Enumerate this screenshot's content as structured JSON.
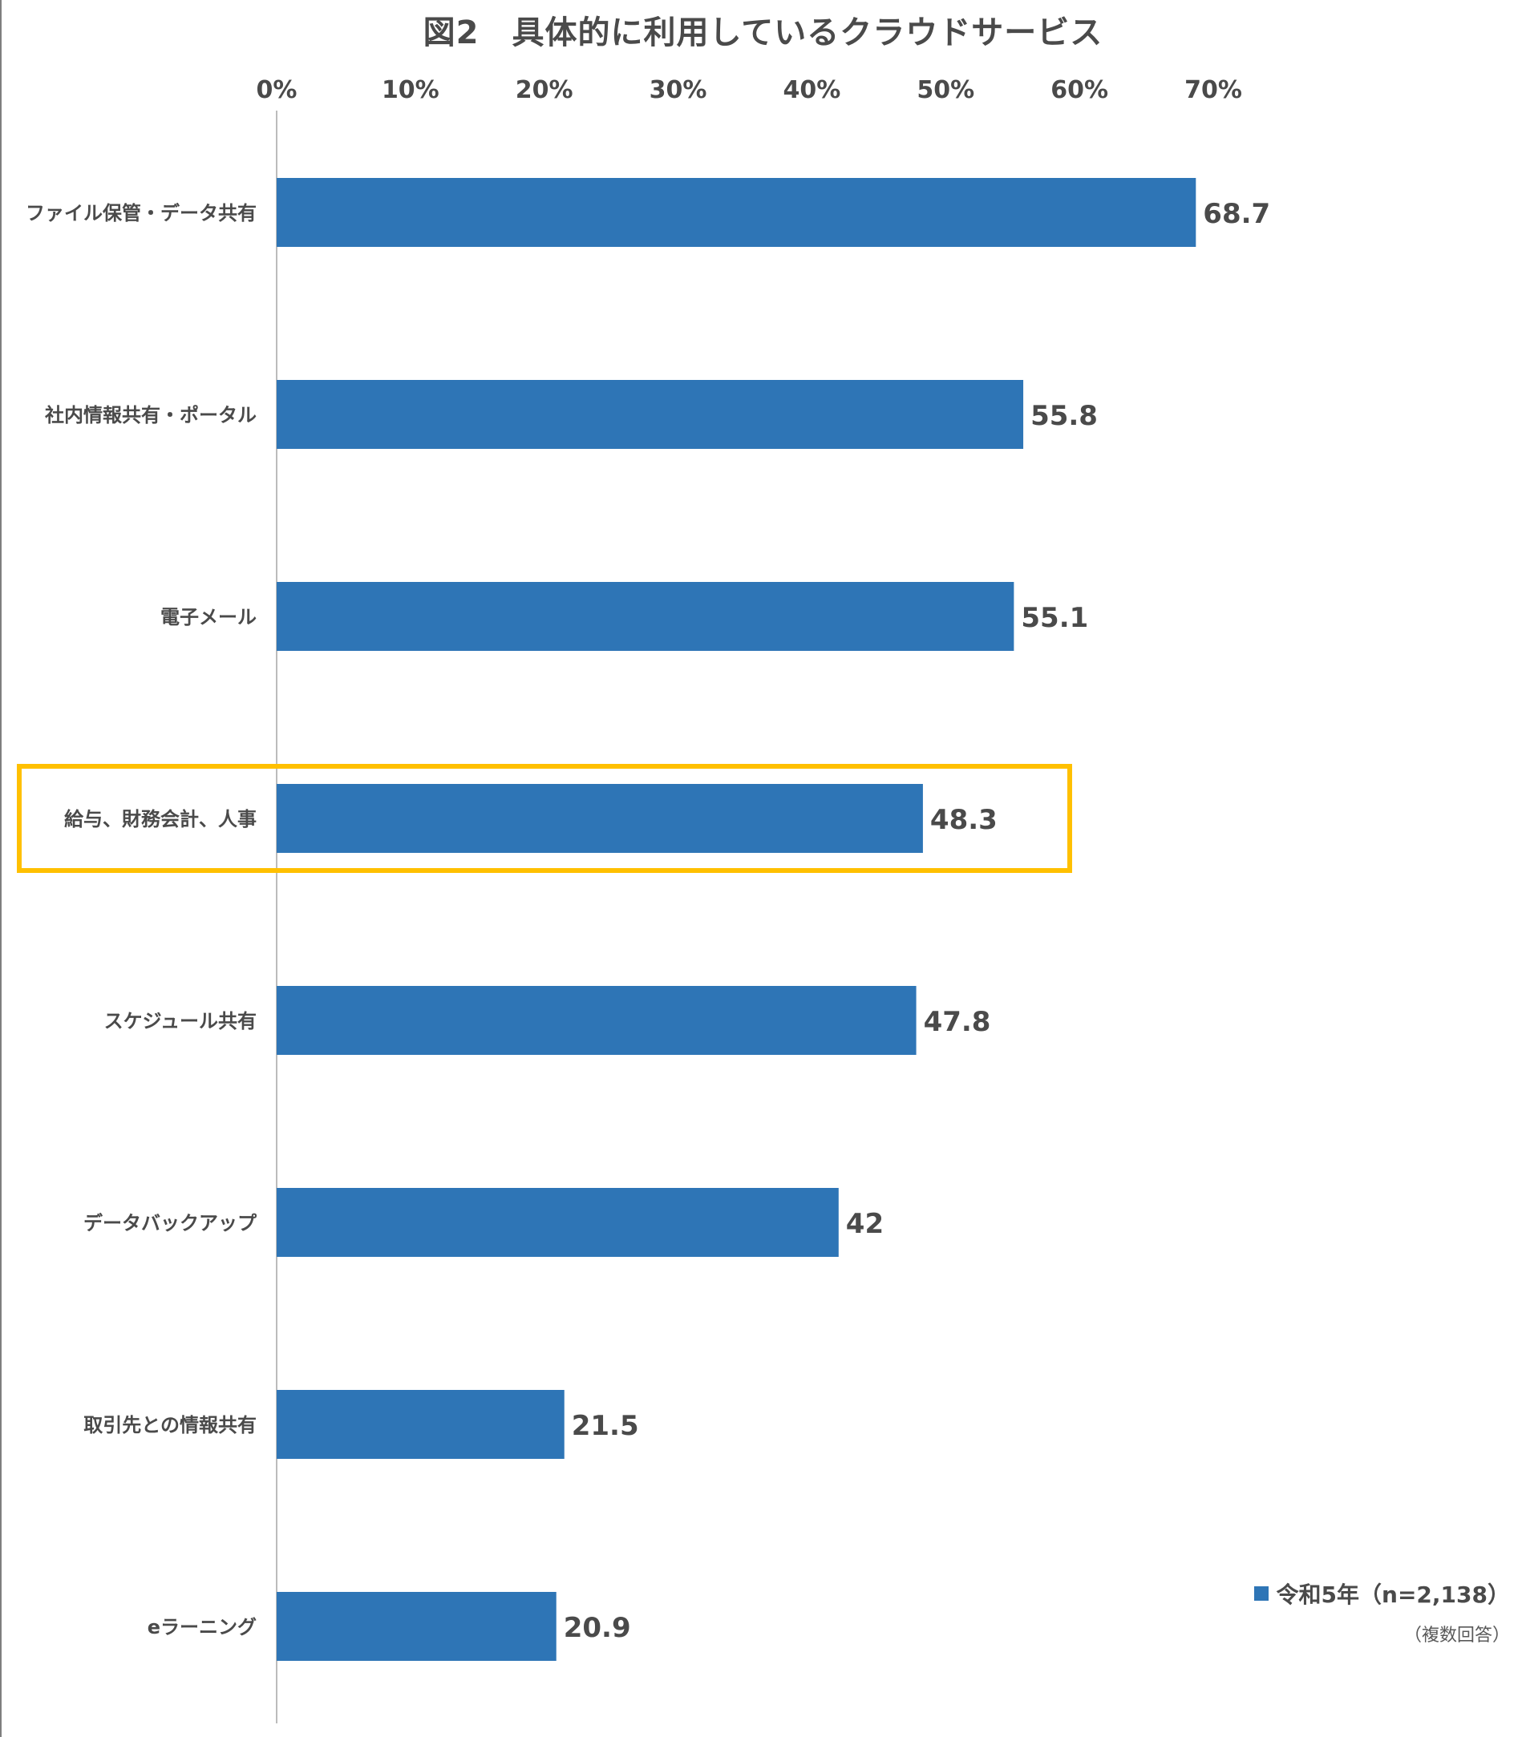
{
  "chart_data": {
    "type": "bar",
    "orientation": "horizontal",
    "title": "図2　具体的に利用しているクラウドサービス",
    "categories": [
      "ファイル保管・データ共有",
      "社内情報共有・ポータル",
      "電子メール",
      "給与、財務会計、人事",
      "スケジュール共有",
      "データバックアップ",
      "取引先との情報共有",
      "eラーニング"
    ],
    "series": [
      {
        "name": "令和5年（n=2,138）",
        "values": [
          68.7,
          55.8,
          55.1,
          48.3,
          47.8,
          42,
          21.5,
          20.9
        ],
        "data_labels": [
          "68.7",
          "55.8",
          "55.1",
          "48.3",
          "47.8",
          "42",
          "21.5",
          "20.9"
        ]
      }
    ],
    "xlim": [
      0,
      70
    ],
    "x_ticks": [
      0,
      10,
      20,
      30,
      40,
      50,
      60,
      70
    ],
    "x_tick_labels": [
      "0%",
      "10%",
      "20%",
      "30%",
      "40%",
      "50%",
      "60%",
      "70%"
    ],
    "x_axis_position": "top",
    "grid": false,
    "legend_position": "bottom-right",
    "note": "（複数回答）",
    "highlighted_category": "給与、財務会計、人事",
    "colors": {
      "bar": "#2e75b6",
      "highlight": "#ffc000",
      "text": "#4a4a4a",
      "axis": "#a6a6a6"
    }
  }
}
